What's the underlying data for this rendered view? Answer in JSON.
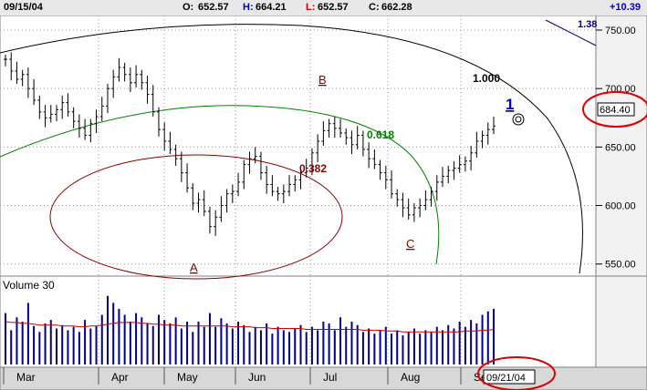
{
  "header": {
    "date": "09/15/04",
    "open_label": "O:",
    "open": "652.57",
    "high_label": "H:",
    "high": "664.21",
    "low_label": "L:",
    "low": "652.57",
    "close_label": "C:",
    "close": "662.28",
    "change": "+10.39"
  },
  "colors": {
    "price_bar": "#000000",
    "volume_bar": "#00008b",
    "volume_ma": "#cc0000",
    "arc_100": "#000000",
    "arc_0618": "#008000",
    "arc_0382": "#8b0000",
    "trendline": "#00008b",
    "highlight_circle": "#dd0000",
    "wave_label": "#8b0000",
    "accent_label": "#0000cc"
  },
  "price_panel": {
    "fib_labels": [
      "1.000",
      "0.618",
      "0.382"
    ],
    "wave_labels": [
      "A",
      "B",
      "C"
    ],
    "target_label": "1",
    "price_tag": "684.40",
    "corner_text": "1.38"
  },
  "volume_panel": {
    "label": "Volume 30"
  },
  "x_axis": {
    "months": [
      "Mar",
      "Apr",
      "May",
      "Jun",
      "Jul",
      "Aug",
      "Sep"
    ],
    "date_box": "09/21/04"
  },
  "chart_data": {
    "type": "bar",
    "description_of_series": "daily OHLC price bars with volume bars and volume moving average",
    "y_ticks": [
      550,
      600,
      650,
      700,
      750
    ],
    "y_tick_labels": [
      "550.00",
      "600.00",
      "650.00",
      "700.00",
      "750.00"
    ],
    "ylim": [
      542,
      757
    ],
    "x_categories": [
      "Mar",
      "Apr",
      "May",
      "Jun",
      "Jul",
      "Aug",
      "Sep"
    ],
    "grid": true,
    "grid_style": "dotted",
    "price_closes": [
      725,
      715,
      708,
      712,
      700,
      690,
      680,
      675,
      678,
      682,
      688,
      680,
      672,
      666,
      660,
      670,
      676,
      685,
      700,
      710,
      718,
      712,
      705,
      712,
      705,
      695,
      680,
      665,
      655,
      648,
      640,
      628,
      615,
      602,
      605,
      595,
      582,
      590,
      600,
      610,
      612,
      620,
      635,
      640,
      642,
      628,
      618,
      612,
      610,
      612,
      618,
      622,
      628,
      632,
      645,
      655,
      664,
      670,
      666,
      662,
      658,
      652,
      660,
      648,
      640,
      635,
      628,
      622,
      610,
      605,
      598,
      592,
      598,
      600,
      605,
      612,
      620,
      625,
      630,
      632,
      635,
      638,
      645,
      655,
      660,
      665,
      668
    ],
    "volume_bars": [
      60,
      40,
      55,
      50,
      72,
      45,
      38,
      48,
      52,
      42,
      46,
      40,
      44,
      38,
      52,
      42,
      45,
      58,
      80,
      72,
      65,
      58,
      50,
      60,
      55,
      48,
      45,
      58,
      52,
      48,
      55,
      42,
      50,
      38,
      50,
      44,
      60,
      44,
      54,
      48,
      42,
      50,
      46,
      38,
      44,
      40,
      48,
      36,
      44,
      40,
      38,
      42,
      46,
      38,
      44,
      40,
      50,
      48,
      40,
      55,
      44,
      50,
      46,
      38,
      42,
      36,
      40,
      44,
      36,
      40,
      34,
      38,
      42,
      36,
      40,
      38,
      44,
      40,
      46,
      42,
      50,
      44,
      52,
      48,
      58,
      62,
      65
    ],
    "volume_ma": [
      50,
      49,
      49,
      48,
      48,
      47,
      46,
      46,
      46,
      46,
      45,
      45,
      45,
      44,
      44,
      45,
      45,
      46,
      47,
      48,
      49,
      49,
      49,
      49,
      48,
      48,
      47,
      47,
      46,
      46,
      46,
      45,
      45,
      45,
      45,
      45,
      45,
      45,
      45,
      45,
      44,
      44,
      44,
      44,
      43,
      43,
      43,
      42,
      42,
      42,
      42,
      42,
      42,
      41,
      41,
      41,
      41,
      41,
      41,
      41,
      41,
      41,
      41,
      40,
      40,
      40,
      40,
      39,
      39,
      39,
      38,
      38,
      38,
      38,
      38,
      38,
      38,
      38,
      38,
      38,
      38,
      39,
      39,
      39,
      40,
      40,
      41
    ],
    "volume_max": 100,
    "annotations": [
      "1.000",
      "0.618",
      "0.382",
      "A",
      "B",
      "C",
      "1",
      "684.40",
      "09/21/04"
    ]
  }
}
